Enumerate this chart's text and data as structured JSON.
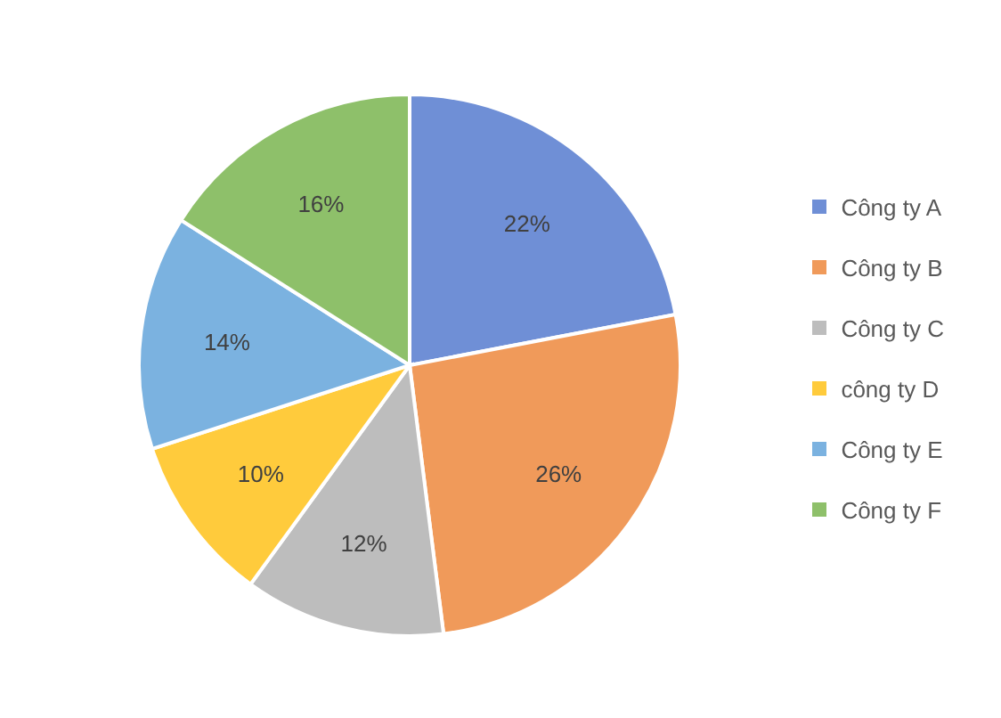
{
  "chart_data": {
    "type": "pie",
    "categories": [
      "Công ty A",
      "Công ty B",
      "Công ty C",
      "công ty D",
      "Công ty E",
      "Công ty F"
    ],
    "values": [
      22,
      26,
      12,
      10,
      14,
      16
    ],
    "value_labels": [
      "22%",
      "26%",
      "12%",
      "10%",
      "14%",
      "16%"
    ],
    "colors": [
      "#6f8fd6",
      "#f09a5a",
      "#bdbdbd",
      "#ffcb3c",
      "#7bb2e0",
      "#8ec06a"
    ],
    "legend": "right"
  }
}
